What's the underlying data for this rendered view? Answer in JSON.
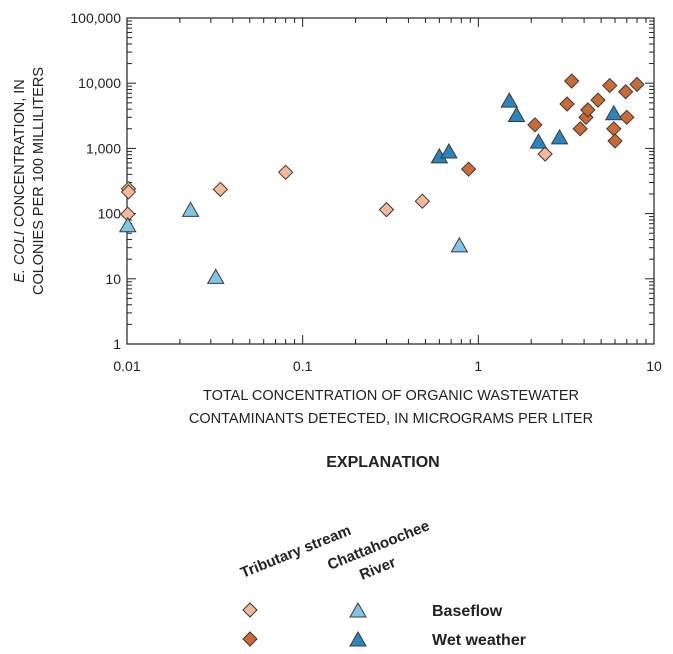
{
  "chart_data": {
    "type": "scatter",
    "title": "",
    "xlabel_lines": [
      "TOTAL CONCENTRATION OF ORGANIC WASTEWATER",
      "CONTAMINANTS DETECTED, IN MICROGRAMS PER LITER"
    ],
    "ylabel_italic": "E. COLI",
    "ylabel_line1_rest": " CONCENTRATION, IN",
    "ylabel_line2": "COLONIES PER 100 MILLILITERS",
    "x_scale": "log",
    "y_scale": "log",
    "xlim": [
      0.01,
      10
    ],
    "ylim": [
      1,
      100000
    ],
    "x_ticks": [
      0.01,
      0.1,
      1,
      10
    ],
    "x_tick_labels": [
      "0.01",
      "0.1",
      "1",
      "10"
    ],
    "y_ticks": [
      1,
      10,
      100,
      1000,
      10000,
      100000
    ],
    "y_tick_labels": [
      "1",
      "10",
      "100",
      "1,000",
      "10,000",
      "100,000"
    ],
    "grid": false,
    "series": [
      {
        "name": "Tributary stream, Baseflow",
        "marker": "diamond",
        "color": "#f7b899",
        "points": [
          {
            "x": 0.0102,
            "y": 240
          },
          {
            "x": 0.0102,
            "y": 215
          },
          {
            "x": 0.0101,
            "y": 98
          },
          {
            "x": 0.034,
            "y": 235
          },
          {
            "x": 0.08,
            "y": 430
          },
          {
            "x": 0.3,
            "y": 115
          },
          {
            "x": 0.48,
            "y": 155
          },
          {
            "x": 2.4,
            "y": 820
          }
        ]
      },
      {
        "name": "Tributary stream, Wet weather",
        "marker": "diamond",
        "color": "#cc6a35",
        "points": [
          {
            "x": 0.88,
            "y": 480
          },
          {
            "x": 2.1,
            "y": 2300
          },
          {
            "x": 3.2,
            "y": 4800
          },
          {
            "x": 3.4,
            "y": 10800
          },
          {
            "x": 3.8,
            "y": 2000
          },
          {
            "x": 4.1,
            "y": 3000
          },
          {
            "x": 4.2,
            "y": 3900
          },
          {
            "x": 4.8,
            "y": 5500
          },
          {
            "x": 5.6,
            "y": 9200
          },
          {
            "x": 5.9,
            "y": 2000
          },
          {
            "x": 6.0,
            "y": 1300
          },
          {
            "x": 6.9,
            "y": 7400
          },
          {
            "x": 7.0,
            "y": 3000
          },
          {
            "x": 8.0,
            "y": 9600
          }
        ]
      },
      {
        "name": "Chattahoochee River, Baseflow",
        "marker": "triangle",
        "color": "#7fc6e6",
        "points": [
          {
            "x": 0.0101,
            "y": 65
          },
          {
            "x": 0.023,
            "y": 112
          },
          {
            "x": 0.032,
            "y": 10.5
          },
          {
            "x": 0.78,
            "y": 32
          }
        ]
      },
      {
        "name": "Chattahoochee River, Wet weather",
        "marker": "triangle",
        "color": "#2a84bf",
        "points": [
          {
            "x": 0.6,
            "y": 740
          },
          {
            "x": 0.68,
            "y": 880
          },
          {
            "x": 1.5,
            "y": 5300
          },
          {
            "x": 1.65,
            "y": 3200
          },
          {
            "x": 2.2,
            "y": 1250
          },
          {
            "x": 2.9,
            "y": 1450
          },
          {
            "x": 5.9,
            "y": 3400
          }
        ]
      }
    ],
    "legend": {
      "title": "EXPLANATION",
      "column_headers": [
        "Tributary stream",
        "Chattahoochee"
      ],
      "column_header_second_line": "River",
      "rows": [
        "Baseflow",
        "Wet weather"
      ]
    }
  },
  "colors": {
    "tributary_baseflow": "#f7b899",
    "tributary_wet": "#cc6a35",
    "river_baseflow": "#7fc6e6",
    "river_wet": "#2a84bf",
    "marker_outline": "#3a3a3a",
    "axis": "#222222"
  }
}
